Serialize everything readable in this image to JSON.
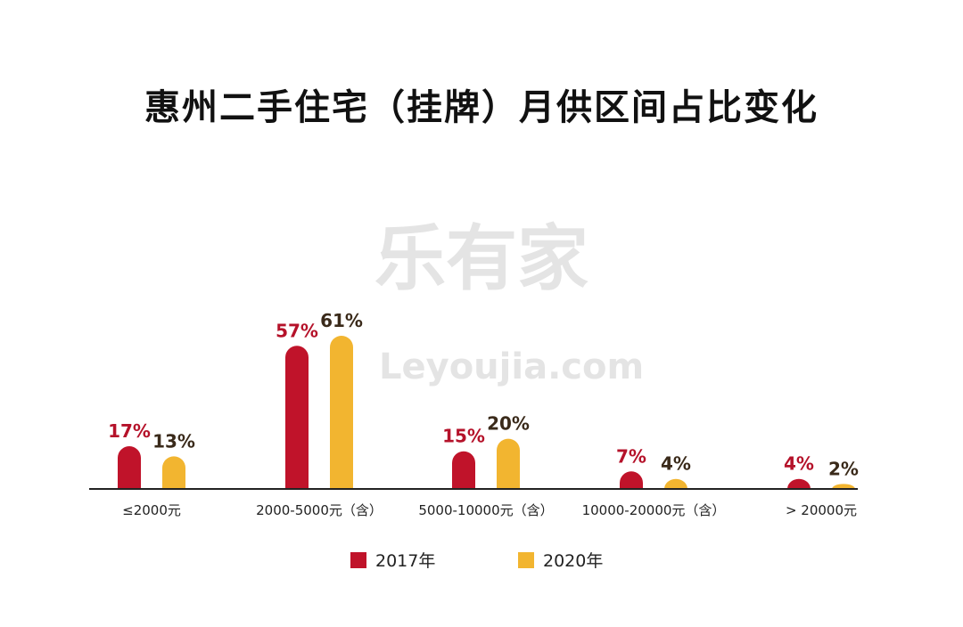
{
  "title": "惠州二手住宅（挂牌）月供区间占比变化",
  "watermark": {
    "logo": "乐有家",
    "site": "Leyoujia.com"
  },
  "chart_data": {
    "type": "bar",
    "title": "惠州二手住宅（挂牌）月供区间占比变化",
    "categories": [
      "≤2000元",
      "2000-5000元（含）",
      "5000-10000元（含）",
      "10000-20000元（含）",
      "> 20000元"
    ],
    "series": [
      {
        "name": "2017年",
        "values": [
          17,
          57,
          15,
          7,
          4
        ],
        "labels": [
          "17%",
          "57%",
          "15%",
          "7%",
          "4%"
        ],
        "color": "#c0132a",
        "label_color": "#b5122a"
      },
      {
        "name": "2020年",
        "values": [
          13,
          61,
          20,
          4,
          2
        ],
        "labels": [
          "13%",
          "61%",
          "20%",
          "4%",
          "2%"
        ],
        "color": "#f2b530",
        "label_color": "#3a2a1a"
      }
    ],
    "unit": "%",
    "ylim": [
      0,
      65
    ],
    "grid": false,
    "legend": "bottom"
  }
}
